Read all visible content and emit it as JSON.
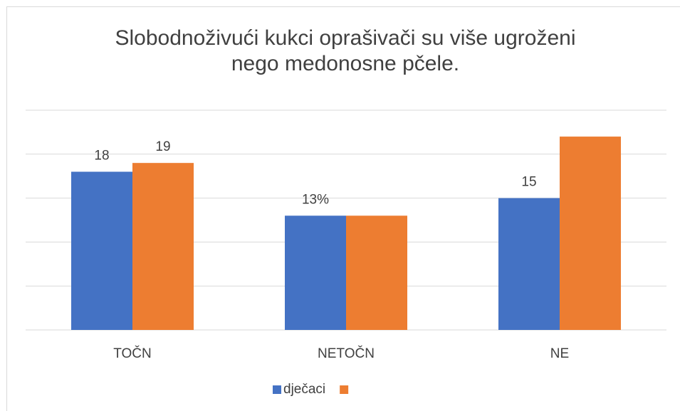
{
  "chart_data": {
    "type": "bar",
    "title": "Slobodnoživući kukci oprašivači su više ugroženi\nnego medonosne pčele.",
    "categories": [
      "TOČN",
      "NETOČN",
      "NE"
    ],
    "series": [
      {
        "name": "dječaci",
        "color": "#4472c4",
        "values": [
          18,
          13,
          15
        ],
        "value_labels": [
          "18",
          "13%",
          "15"
        ]
      },
      {
        "color": "#ed7d31",
        "values": [
          19,
          13,
          22
        ],
        "value_labels": [
          "19",
          null,
          null
        ]
      }
    ],
    "ylim": [
      0,
      25
    ],
    "yticks": [
      0,
      5,
      10,
      15,
      20,
      25
    ],
    "grid": true,
    "legend": "bottom"
  }
}
